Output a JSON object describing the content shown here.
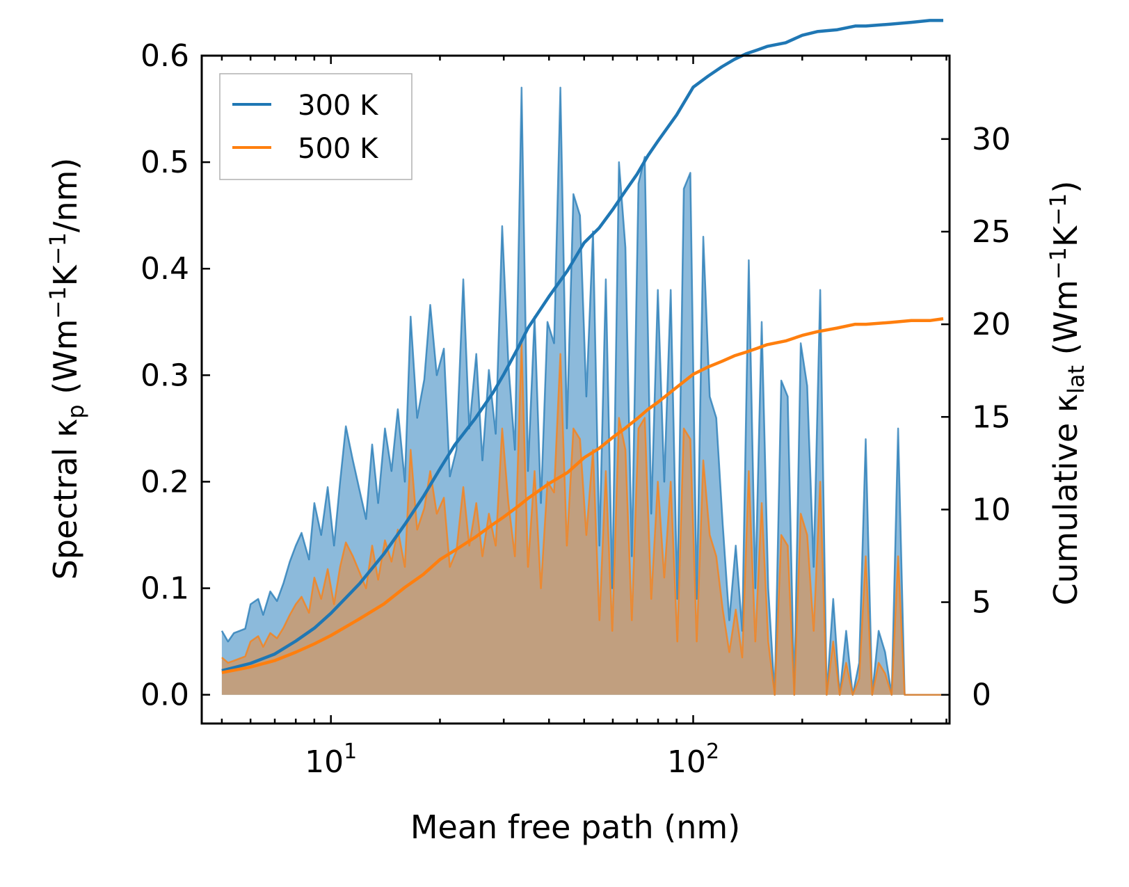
{
  "chart_data": {
    "type": "area+line",
    "title": "",
    "xlabel": "Mean free path (nm)",
    "ylabel_left": {
      "base": "Spectral κ",
      "sub": "p",
      "units": "(Wm",
      "sup1": "−1",
      "k": "K",
      "sup2": "−1",
      "tail": "/nm)"
    },
    "ylabel_right": {
      "base": "Cumulative κ",
      "sub": "lat",
      "units": "(Wm",
      "sup1": "−1",
      "k": "K",
      "sup2": "−1",
      "tail": ")"
    },
    "xscale": "log",
    "xlim": [
      4.4,
      510
    ],
    "ylim_left": [
      -0.027,
      0.6
    ],
    "ylim_right": [
      -1.55,
      34.5
    ],
    "x_major_ticks": [
      {
        "value": 10,
        "base": "10",
        "exp": "1"
      },
      {
        "value": 100,
        "base": "10",
        "exp": "2"
      }
    ],
    "left_ticks": [
      {
        "value": 0.0,
        "label": "0.0"
      },
      {
        "value": 0.1,
        "label": "0.1"
      },
      {
        "value": 0.2,
        "label": "0.2"
      },
      {
        "value": 0.3,
        "label": "0.3"
      },
      {
        "value": 0.4,
        "label": "0.4"
      },
      {
        "value": 0.5,
        "label": "0.5"
      },
      {
        "value": 0.6,
        "label": "0.6"
      }
    ],
    "right_ticks": [
      {
        "value": 0,
        "label": "0"
      },
      {
        "value": 5,
        "label": "5"
      },
      {
        "value": 10,
        "label": "10"
      },
      {
        "value": 15,
        "label": "15"
      },
      {
        "value": 20,
        "label": "20"
      },
      {
        "value": 25,
        "label": "25"
      },
      {
        "value": 30,
        "label": "30"
      }
    ],
    "legend": {
      "position": "top-left",
      "entries": [
        {
          "label": "300 K",
          "color": "#1f77b4"
        },
        {
          "label": "500 K",
          "color": "#ff7f0e"
        }
      ]
    },
    "colors": {
      "300K": "#1f77b4",
      "500K": "#ff7f0e",
      "fill300": "#7fb2d7",
      "fill500": "#c69c74"
    },
    "series": [
      {
        "name": "300 K",
        "axis": "left",
        "style": "filled-area",
        "x": [
          5.0,
          5.2,
          5.4,
          5.6,
          5.8,
          6.0,
          6.3,
          6.5,
          6.8,
          7.1,
          7.4,
          7.7,
          8.0,
          8.3,
          8.7,
          9.0,
          9.4,
          9.8,
          10.2,
          10.6,
          11.0,
          11.5,
          12.0,
          12.5,
          13.0,
          13.5,
          14.1,
          14.7,
          15.3,
          16.0,
          16.6,
          17.3,
          18.1,
          18.8,
          19.6,
          20.5,
          21.3,
          22.2,
          23.2,
          24.1,
          25.2,
          26.2,
          27.3,
          28.5,
          29.7,
          30.9,
          32.2,
          33.6,
          35.0,
          36.5,
          38.0,
          39.6,
          41.3,
          43.0,
          44.8,
          46.7,
          48.7,
          50.7,
          52.9,
          55.1,
          57.4,
          59.8,
          62.4,
          65.0,
          67.7,
          70.6,
          73.5,
          76.6,
          79.9,
          83.2,
          86.7,
          90.4,
          94.2,
          98.2,
          102.3,
          106.6,
          111.1,
          115.8,
          120.7,
          125.8,
          131.1,
          136.6,
          142.4,
          148.4,
          154.6,
          161.1,
          167.9,
          175.0,
          182.4,
          190.1,
          198.1,
          206.4,
          215.1,
          224.2,
          233.6,
          243.5,
          253.7,
          264.4,
          275.6,
          287.2,
          299.3,
          311.9,
          325.0,
          338.7,
          353.0,
          367.9,
          383.4,
          399.5,
          416.3,
          433.9,
          452.2,
          471.2,
          491.1
        ],
        "values": [
          0.06,
          0.05,
          0.058,
          0.06,
          0.062,
          0.085,
          0.09,
          0.075,
          0.097,
          0.088,
          0.105,
          0.125,
          0.14,
          0.152,
          0.127,
          0.18,
          0.15,
          0.195,
          0.14,
          0.2,
          0.252,
          0.22,
          0.192,
          0.165,
          0.235,
          0.18,
          0.25,
          0.21,
          0.268,
          0.2,
          0.355,
          0.26,
          0.296,
          0.366,
          0.3,
          0.325,
          0.205,
          0.23,
          0.39,
          0.25,
          0.32,
          0.22,
          0.305,
          0.245,
          0.44,
          0.31,
          0.23,
          0.57,
          0.21,
          0.355,
          0.18,
          0.35,
          0.33,
          0.57,
          0.25,
          0.47,
          0.45,
          0.28,
          0.435,
          0.14,
          0.39,
          0.1,
          0.5,
          0.42,
          0.13,
          0.48,
          0.505,
          0.17,
          0.38,
          0.2,
          0.38,
          0.09,
          0.475,
          0.49,
          0.09,
          0.43,
          0.28,
          0.26,
          0.16,
          0.07,
          0.14,
          0.06,
          0.408,
          0.1,
          0.35,
          0.1,
          0.0,
          0.295,
          0.28,
          0.0,
          0.33,
          0.29,
          0.12,
          0.38,
          0.0,
          0.09,
          0.0,
          0.06,
          0.0,
          0.03,
          0.24,
          0.0,
          0.06,
          0.04,
          0.0,
          0.25,
          0.0,
          0.0,
          0.0,
          0.0,
          0.0,
          0.0,
          0.0
        ]
      },
      {
        "name": "500 K",
        "axis": "left",
        "style": "filled-area",
        "x": [
          5.0,
          5.2,
          5.4,
          5.6,
          5.8,
          6.0,
          6.3,
          6.5,
          6.8,
          7.1,
          7.4,
          7.7,
          8.0,
          8.3,
          8.7,
          9.0,
          9.4,
          9.8,
          10.2,
          10.6,
          11.0,
          11.5,
          12.0,
          12.5,
          13.0,
          13.5,
          14.1,
          14.7,
          15.3,
          16.0,
          16.6,
          17.3,
          18.1,
          18.8,
          19.6,
          20.5,
          21.3,
          22.2,
          23.2,
          24.1,
          25.2,
          26.2,
          27.3,
          28.5,
          29.7,
          30.9,
          32.2,
          33.6,
          35.0,
          36.5,
          38.0,
          39.6,
          41.3,
          43.0,
          44.8,
          46.7,
          48.7,
          50.7,
          52.9,
          55.1,
          57.4,
          59.8,
          62.4,
          65.0,
          67.7,
          70.6,
          73.5,
          76.6,
          79.9,
          83.2,
          86.7,
          90.4,
          94.2,
          98.2,
          102.3,
          106.6,
          111.1,
          115.8,
          120.7,
          125.8,
          131.1,
          136.6,
          142.4,
          148.4,
          154.6,
          161.1,
          167.9,
          175.0,
          182.4,
          190.1,
          198.1,
          206.4,
          215.1,
          224.2,
          233.6,
          243.5,
          253.7,
          264.4,
          275.6,
          287.2,
          299.3,
          311.9,
          325.0,
          338.7,
          353.0,
          367.9,
          383.4,
          399.5,
          416.3,
          433.9,
          452.2,
          471.2,
          491.1
        ],
        "values": [
          0.035,
          0.03,
          0.032,
          0.034,
          0.036,
          0.05,
          0.055,
          0.045,
          0.058,
          0.053,
          0.063,
          0.075,
          0.085,
          0.092,
          0.077,
          0.11,
          0.09,
          0.118,
          0.085,
          0.12,
          0.143,
          0.13,
          0.115,
          0.1,
          0.14,
          0.108,
          0.145,
          0.125,
          0.155,
          0.12,
          0.23,
          0.155,
          0.175,
          0.21,
          0.17,
          0.185,
          0.12,
          0.135,
          0.195,
          0.14,
          0.18,
          0.13,
          0.17,
          0.14,
          0.25,
          0.18,
          0.13,
          0.33,
          0.12,
          0.21,
          0.1,
          0.2,
          0.19,
          0.32,
          0.14,
          0.25,
          0.24,
          0.15,
          0.23,
          0.07,
          0.21,
          0.06,
          0.26,
          0.23,
          0.07,
          0.25,
          0.26,
          0.09,
          0.2,
          0.11,
          0.2,
          0.05,
          0.25,
          0.24,
          0.05,
          0.22,
          0.15,
          0.13,
          0.08,
          0.04,
          0.08,
          0.035,
          0.21,
          0.05,
          0.18,
          0.05,
          0.0,
          0.15,
          0.14,
          0.0,
          0.17,
          0.15,
          0.06,
          0.2,
          0.0,
          0.05,
          0.0,
          0.03,
          0.0,
          0.015,
          0.13,
          0.0,
          0.03,
          0.02,
          0.0,
          0.13,
          0.0,
          0.0,
          0.0,
          0.0,
          0.0,
          0.0,
          0.0
        ]
      },
      {
        "name": "300 K cumulative",
        "axis": "right",
        "style": "line",
        "x": [
          5.0,
          6.0,
          7.0,
          8.0,
          9.0,
          10.0,
          12.0,
          14.0,
          16.0,
          18.0,
          20.0,
          22.0,
          25.0,
          28.0,
          30.0,
          33.0,
          35.0,
          40.0,
          45.0,
          50.0,
          55.0,
          60.0,
          65.0,
          70.0,
          75.0,
          80.0,
          90.0,
          100.0,
          110.0,
          120.0,
          130.0,
          140.0,
          150.0,
          160.0,
          180.0,
          200.0,
          220.0,
          250.0,
          280.0,
          300.0,
          350.0,
          400.0,
          450.0,
          490.0
        ],
        "values": [
          1.3,
          1.7,
          2.2,
          2.9,
          3.6,
          4.4,
          6.0,
          7.6,
          9.2,
          10.7,
          12.2,
          13.5,
          14.9,
          16.3,
          17.3,
          18.8,
          19.8,
          21.5,
          22.9,
          24.4,
          25.2,
          26.2,
          27.2,
          28.1,
          29.1,
          29.9,
          31.3,
          32.8,
          33.4,
          33.9,
          34.3,
          34.6,
          34.8,
          35.0,
          35.2,
          35.6,
          35.8,
          35.9,
          36.1,
          36.1,
          36.2,
          36.3,
          36.4,
          36.4
        ]
      },
      {
        "name": "500 K cumulative",
        "axis": "right",
        "style": "line",
        "x": [
          5.0,
          6.0,
          7.0,
          8.0,
          9.0,
          10.0,
          12.0,
          14.0,
          16.0,
          18.0,
          20.0,
          22.0,
          25.0,
          28.0,
          30.0,
          33.0,
          35.0,
          40.0,
          45.0,
          50.0,
          55.0,
          60.0,
          65.0,
          70.0,
          75.0,
          80.0,
          90.0,
          100.0,
          110.0,
          120.0,
          130.0,
          140.0,
          150.0,
          160.0,
          180.0,
          200.0,
          220.0,
          250.0,
          280.0,
          300.0,
          350.0,
          400.0,
          450.0,
          490.0
        ],
        "values": [
          1.2,
          1.5,
          1.85,
          2.3,
          2.75,
          3.2,
          4.1,
          4.9,
          5.8,
          6.5,
          7.3,
          7.8,
          8.5,
          9.2,
          9.6,
          10.2,
          10.6,
          11.4,
          12.0,
          12.8,
          13.3,
          13.9,
          14.4,
          14.9,
          15.4,
          15.8,
          16.6,
          17.3,
          17.7,
          18.0,
          18.3,
          18.5,
          18.7,
          18.9,
          19.1,
          19.4,
          19.6,
          19.8,
          20.0,
          20.0,
          20.1,
          20.2,
          20.2,
          20.3
        ]
      }
    ]
  }
}
